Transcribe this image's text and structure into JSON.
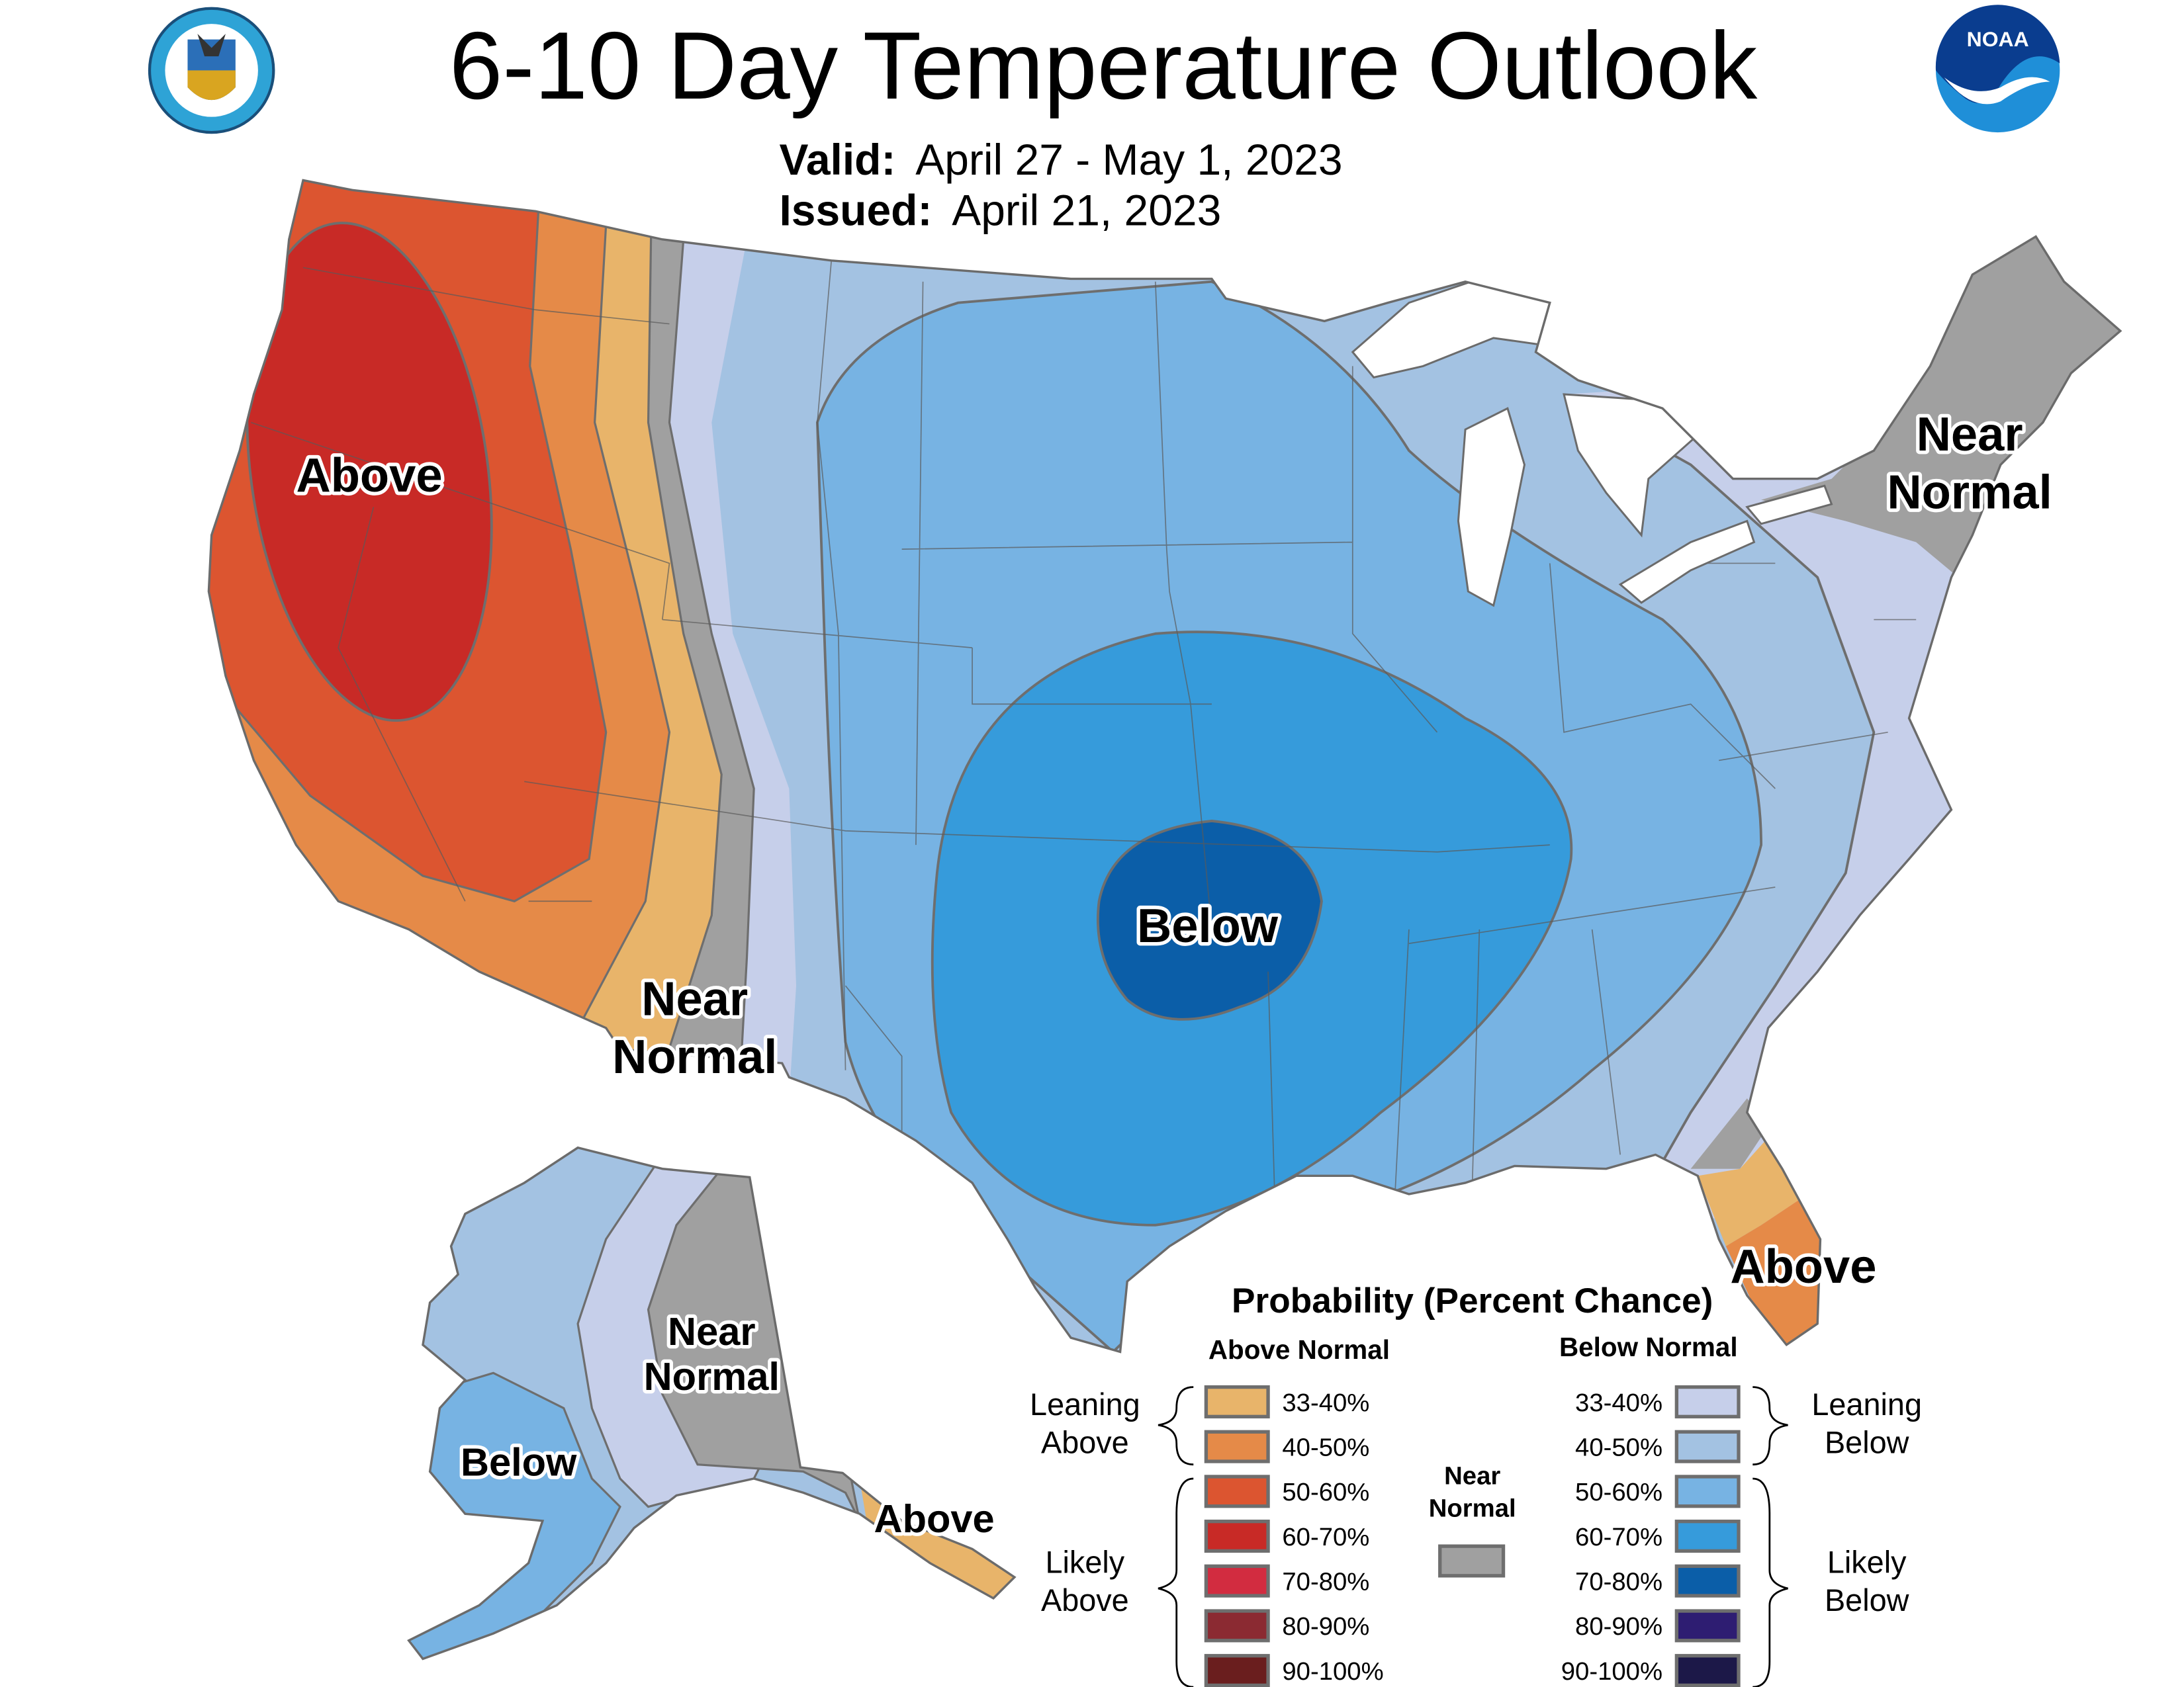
{
  "header": {
    "title": "6-10 Day Temperature Outlook",
    "valid_label": "Valid:",
    "valid_value": "April 27 - May 1, 2023",
    "issued_label": "Issued:",
    "issued_value": "April 21, 2023",
    "left_logo": "Department of Commerce seal - United States of America",
    "right_logo": "NOAA"
  },
  "map_labels": {
    "west_above": "Above",
    "west_near_normal_1": "Near",
    "west_near_normal_2": "Normal",
    "central_below": "Below",
    "northeast_near_1": "Near",
    "northeast_near_2": "Normal",
    "florida_above": "Above",
    "alaska_near_1": "Near",
    "alaska_near_2": "Normal",
    "alaska_below": "Below",
    "alaska_above": "Above"
  },
  "legend": {
    "title": "Probability (Percent Chance)",
    "above_header": "Above Normal",
    "below_header": "Below Normal",
    "leaning_above_1": "Leaning",
    "leaning_above_2": "Above",
    "likely_above_1": "Likely",
    "likely_above_2": "Above",
    "leaning_below_1": "Leaning",
    "leaning_below_2": "Below",
    "likely_below_1": "Likely",
    "likely_below_2": "Below",
    "near_normal_1": "Near",
    "near_normal_2": "Normal",
    "near_normal_color": "#a0a0a0",
    "above": [
      {
        "label": "33-40%",
        "color": "#e8b46a"
      },
      {
        "label": "40-50%",
        "color": "#e58a48"
      },
      {
        "label": "50-60%",
        "color": "#dc5530"
      },
      {
        "label": "60-70%",
        "color": "#c82a26"
      },
      {
        "label": "70-80%",
        "color": "#d22c40"
      },
      {
        "label": "80-90%",
        "color": "#8b2a32"
      },
      {
        "label": "90-100%",
        "color": "#6a1e1e"
      }
    ],
    "below": [
      {
        "label": "33-40%",
        "color": "#c6cfea"
      },
      {
        "label": "40-50%",
        "color": "#a3c2e2"
      },
      {
        "label": "50-60%",
        "color": "#77b3e3"
      },
      {
        "label": "60-70%",
        "color": "#369bdb"
      },
      {
        "label": "70-80%",
        "color": "#0b5ea8"
      },
      {
        "label": "80-90%",
        "color": "#2e1d72"
      },
      {
        "label": "90-100%",
        "color": "#1c1848"
      }
    ]
  }
}
